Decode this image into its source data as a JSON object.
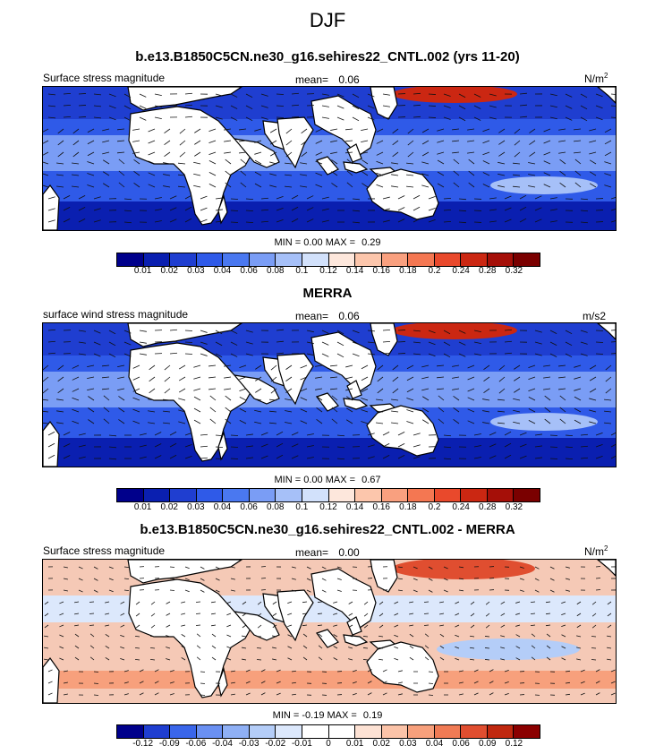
{
  "title": "DJF",
  "colors": {
    "abs_scale": [
      "#00008b",
      "#0a1fb0",
      "#1f3ed0",
      "#2f5ae8",
      "#4a78f0",
      "#7a9df5",
      "#a6c0f8",
      "#d2e1fb",
      "#fde7dc",
      "#fcc6ac",
      "#f9a07f",
      "#f47752",
      "#e9492c",
      "#cb2712",
      "#a50f08",
      "#7a0000"
    ],
    "diff_scale": [
      "#00008b",
      "#1f3ed0",
      "#3a66ea",
      "#6a90f2",
      "#8fb0f5",
      "#b4cdf8",
      "#dce8fc",
      "#ffffff",
      "#ffffff",
      "#fde2d4",
      "#fbc3a8",
      "#f7a07c",
      "#f07b55",
      "#e04e30",
      "#c0280f",
      "#8b0000"
    ],
    "land": "#ffffff"
  },
  "chart_data": [
    {
      "type": "heatmap",
      "title": "b.e13.B1850C5CN.ne30_g16.sehires22_CNTL.002 (yrs 11-20)",
      "field_label": "Surface stress magnitude",
      "mean_label": "mean=",
      "mean_value": "0.06",
      "units": "N/m",
      "units_sup": "2",
      "min_label": "MIN =",
      "min_value": "0.00",
      "max_label": "MAX =",
      "max_value": "0.29",
      "levels": [
        "0.01",
        "0.02",
        "0.03",
        "0.04",
        "0.06",
        "0.08",
        "0.1",
        "0.12",
        "0.14",
        "0.16",
        "0.18",
        "0.2",
        "0.24",
        "0.28",
        "0.32"
      ],
      "vector_field": "wind stress vectors"
    },
    {
      "type": "heatmap",
      "title": "MERRA",
      "field_label": "surface wind stress magnitude",
      "mean_label": "mean=",
      "mean_value": "0.06",
      "units": "m/s2",
      "min_label": "MIN =",
      "min_value": "0.00",
      "max_label": "MAX =",
      "max_value": "0.67",
      "levels": [
        "0.01",
        "0.02",
        "0.03",
        "0.04",
        "0.06",
        "0.08",
        "0.1",
        "0.12",
        "0.14",
        "0.16",
        "0.18",
        "0.2",
        "0.24",
        "0.28",
        "0.32"
      ],
      "vector_field": "wind stress vectors"
    },
    {
      "type": "heatmap",
      "title": "b.e13.B1850C5CN.ne30_g16.sehires22_CNTL.002 - MERRA",
      "field_label": "Surface stress magnitude",
      "mean_label": "mean=",
      "mean_value": "0.00",
      "units": "N/m",
      "units_sup": "2",
      "min_label": "MIN =",
      "min_value": "-0.19",
      "max_label": "MAX =",
      "max_value": "0.19",
      "levels": [
        "-0.12",
        "-0.09",
        "-0.06",
        "-0.04",
        "-0.03",
        "-0.02",
        "-0.01",
        "0",
        "0.01",
        "0.02",
        "0.03",
        "0.04",
        "0.06",
        "0.09",
        "0.12"
      ],
      "vector_field": "difference vectors"
    }
  ]
}
